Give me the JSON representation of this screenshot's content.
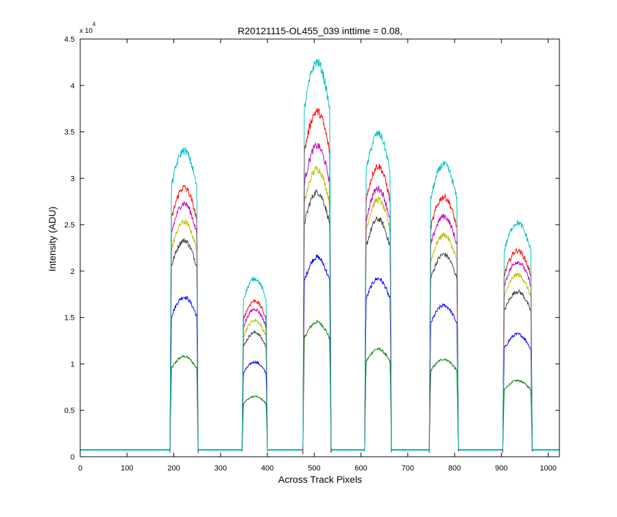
{
  "chart_data": {
    "type": "line",
    "title": "R20121115-OL455_039 inttime = 0.08,",
    "xlabel": "Across Track Pixels",
    "ylabel": "Intensity (ADU)",
    "y_multiplier_label": "x 10",
    "y_multiplier_exponent": "4",
    "xlim": [
      0,
      1024
    ],
    "ylim": [
      0,
      45000
    ],
    "x_ticks": [
      0,
      100,
      200,
      300,
      400,
      500,
      600,
      700,
      800,
      900,
      1000
    ],
    "y_ticks": [
      0,
      5000,
      10000,
      15000,
      20000,
      25000,
      30000,
      35000,
      40000,
      45000
    ],
    "y_tick_labels": [
      "0",
      "0.5",
      "1",
      "1.5",
      "2",
      "2.5",
      "3",
      "3.5",
      "4",
      "4.5"
    ],
    "grid": false,
    "baseline": 700,
    "peak_regions": [
      {
        "start": 192,
        "end": 252
      },
      {
        "start": 346,
        "end": 400
      },
      {
        "start": 476,
        "end": 536
      },
      {
        "start": 608,
        "end": 665
      },
      {
        "start": 746,
        "end": 808
      },
      {
        "start": 903,
        "end": 966
      }
    ],
    "series": [
      {
        "color": "#008000",
        "peak_values": [
          10800,
          6500,
          14500,
          11600,
          10500,
          8200
        ]
      },
      {
        "color": "#0000ff",
        "peak_values": [
          17200,
          10200,
          21500,
          19200,
          16300,
          13200
        ]
      },
      {
        "color": "#404040",
        "peak_values": [
          23300,
          13400,
          28500,
          25600,
          21800,
          17800
        ]
      },
      {
        "color": "#bfbf00",
        "peak_values": [
          25300,
          14700,
          31000,
          27700,
          23900,
          19600
        ]
      },
      {
        "color": "#bf00bf",
        "peak_values": [
          27300,
          15900,
          33500,
          28900,
          25900,
          21000
        ]
      },
      {
        "color": "#ff0000",
        "peak_values": [
          29000,
          16800,
          37200,
          31300,
          28000,
          22200
        ]
      },
      {
        "color": "#00bfbf",
        "peak_values": [
          33000,
          19200,
          42500,
          34800,
          31500,
          25200
        ]
      }
    ]
  }
}
